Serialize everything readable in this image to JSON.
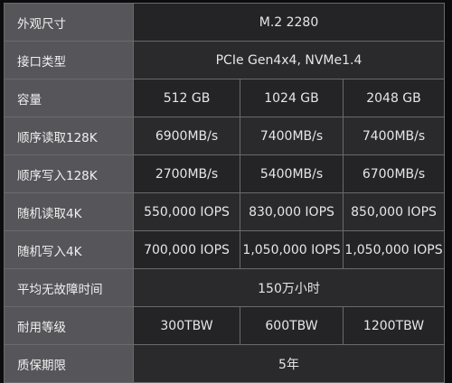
{
  "rows": [
    {
      "label": "外观尺寸",
      "values": [
        "M.2 2280"
      ]
    },
    {
      "label": "接口类型",
      "values": [
        "PCIe Gen4x4, NVMe1.4"
      ]
    },
    {
      "label": "容量",
      "values": [
        "512 GB",
        "1024 GB",
        "2048 GB"
      ]
    },
    {
      "label": "顺序读取128K",
      "values": [
        "6900MB/s",
        "7400MB/s",
        "7400MB/s"
      ]
    },
    {
      "label": "顺序写入128K",
      "values": [
        "2700MB/s",
        "5400MB/s",
        "6700MB/s"
      ]
    },
    {
      "label": "随机读取4K",
      "values": [
        "550,000 IOPS",
        "830,000 IOPS",
        "850,000 IOPS"
      ]
    },
    {
      "label": "随机写入4K",
      "values": [
        "700,000 IOPS",
        "1,050,000 IOPS",
        "1,050,000 IOPS"
      ]
    },
    {
      "label": "平均无故障时间",
      "values": [
        "150万小时"
      ]
    },
    {
      "label": "耐用等级",
      "values": [
        "300TBW",
        "600TBW",
        "1200TBW"
      ]
    },
    {
      "label": "质保期限",
      "values": [
        "5年"
      ]
    }
  ]
}
